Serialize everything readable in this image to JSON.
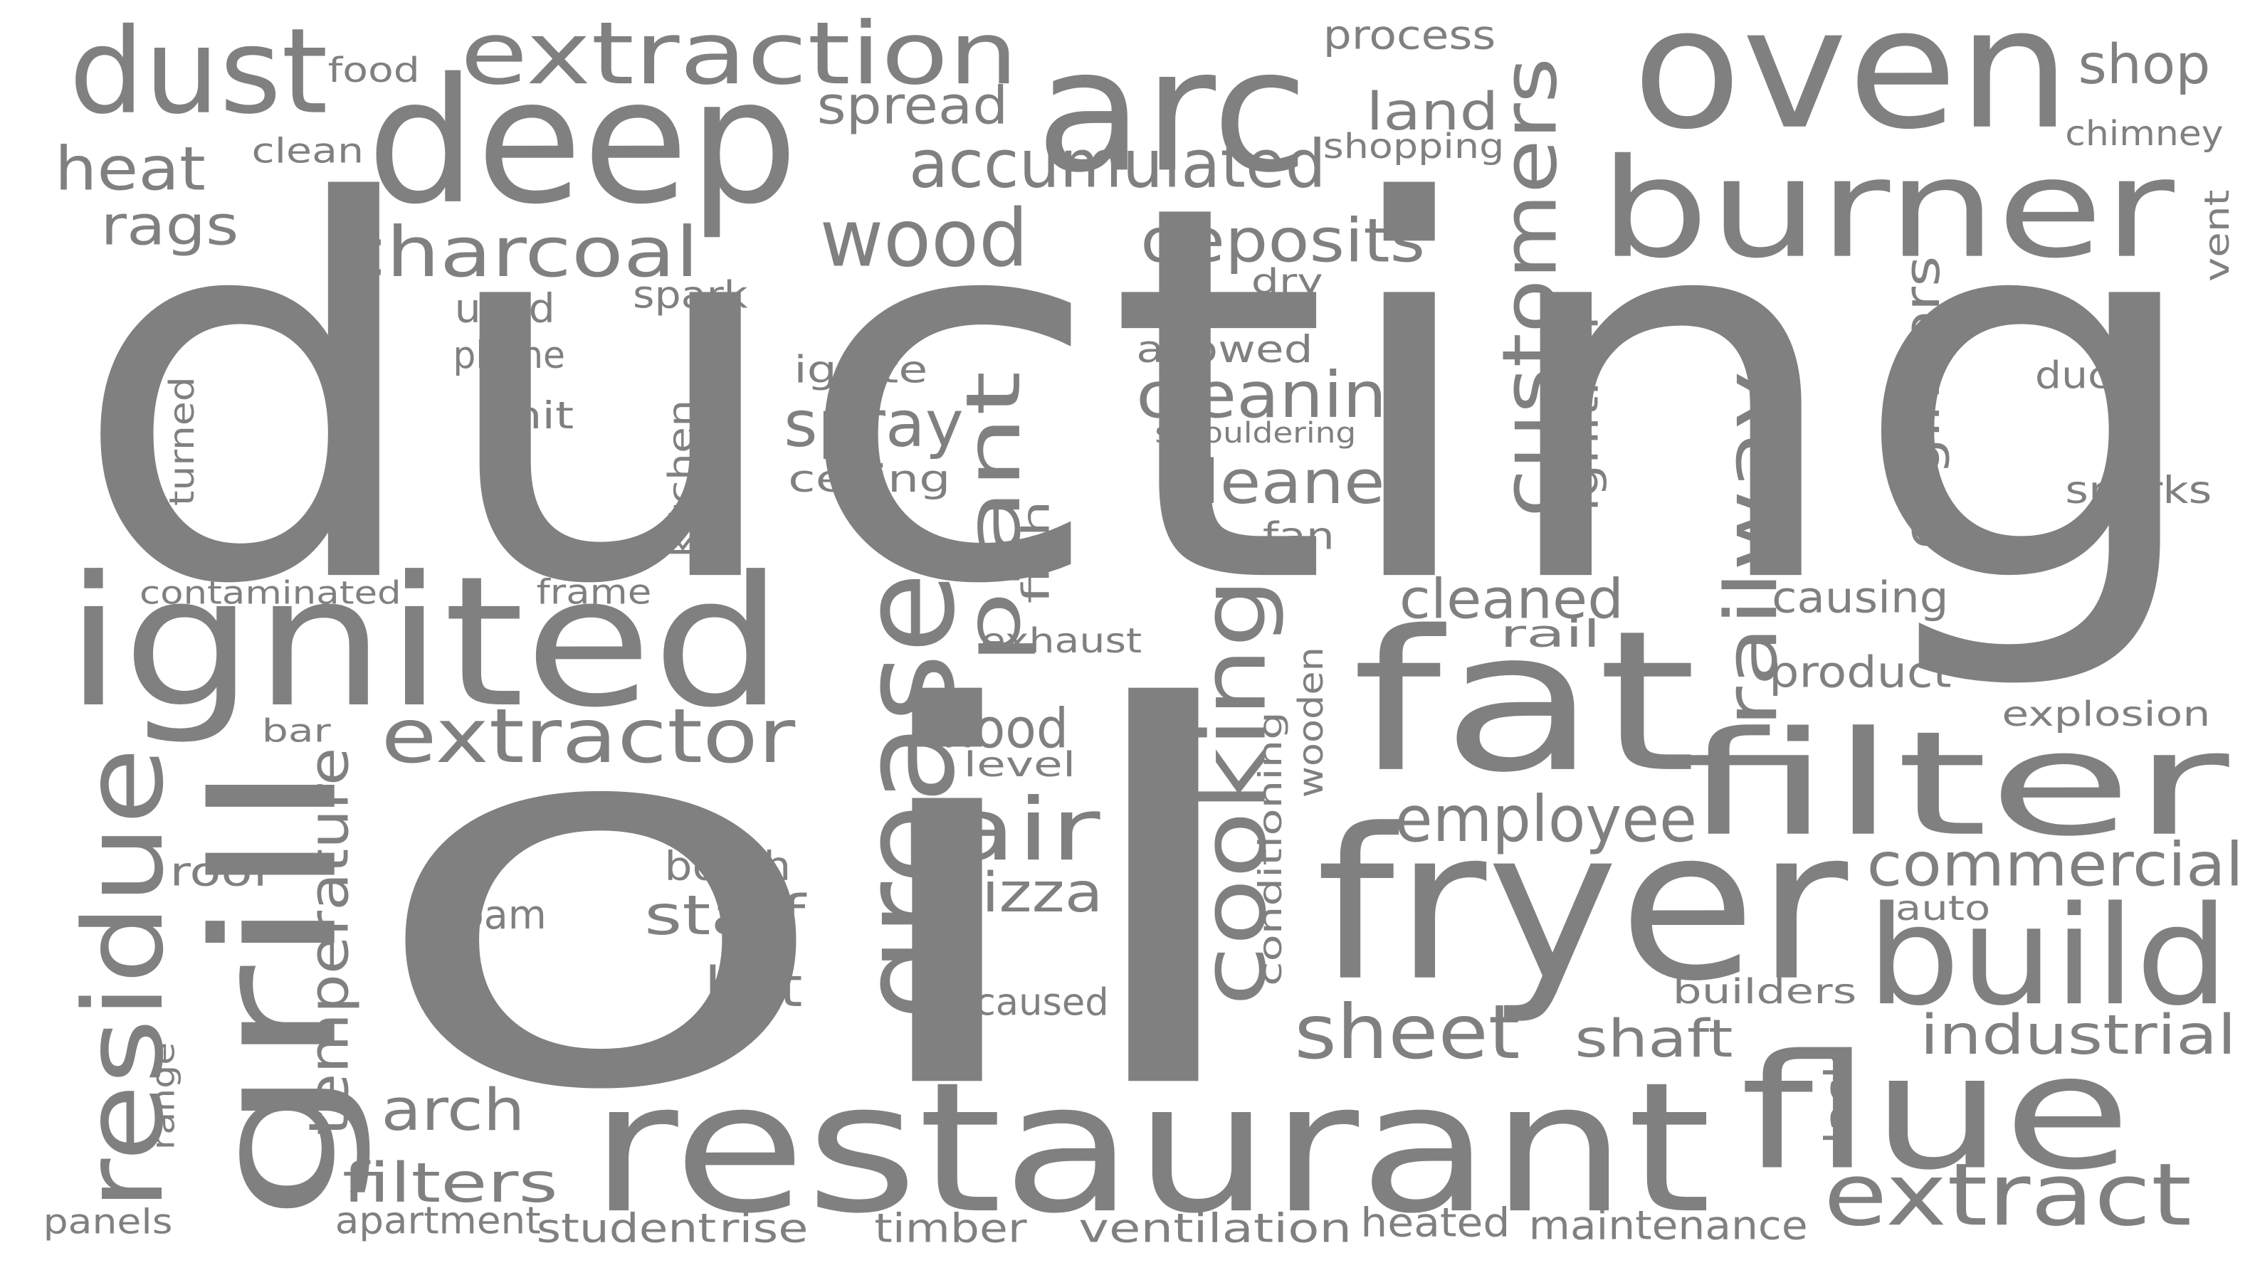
{
  "word_color": "#808080",
  "background": "#ffffff",
  "words": [
    {
      "text": "ducting",
      "orientation": "horizontal"
    },
    {
      "text": "oil",
      "orientation": "horizontal"
    },
    {
      "text": "restaurant",
      "orientation": "horizontal"
    },
    {
      "text": "oven",
      "orientation": "horizontal"
    },
    {
      "text": "deep",
      "orientation": "horizontal"
    },
    {
      "text": "arc",
      "orientation": "horizontal"
    },
    {
      "text": "fryer",
      "orientation": "horizontal"
    },
    {
      "text": "ignited",
      "orientation": "horizontal"
    },
    {
      "text": "fat",
      "orientation": "horizontal"
    },
    {
      "text": "burner",
      "orientation": "horizontal"
    },
    {
      "text": "filter",
      "orientation": "horizontal"
    },
    {
      "text": "flue",
      "orientation": "horizontal"
    },
    {
      "text": "build",
      "orientation": "horizontal"
    },
    {
      "text": "dust",
      "orientation": "horizontal"
    },
    {
      "text": "grill",
      "orientation": "vertical"
    },
    {
      "text": "grease",
      "orientation": "vertical"
    },
    {
      "text": "residue",
      "orientation": "vertical"
    },
    {
      "text": "extraction",
      "orientation": "horizontal"
    },
    {
      "text": "extract",
      "orientation": "horizontal"
    },
    {
      "text": "cooking",
      "orientation": "vertical"
    },
    {
      "text": "customers",
      "orientation": "vertical"
    },
    {
      "text": "plant",
      "orientation": "vertical"
    },
    {
      "text": "extractor",
      "orientation": "horizontal"
    },
    {
      "text": "air",
      "orientation": "horizontal"
    },
    {
      "text": "wood",
      "orientation": "horizontal"
    },
    {
      "text": "charcoal",
      "orientation": "horizontal"
    },
    {
      "text": "accumulated",
      "orientation": "horizontal"
    },
    {
      "text": "sheet",
      "orientation": "horizontal"
    },
    {
      "text": "railway",
      "orientation": "vertical"
    },
    {
      "text": "commercial",
      "orientation": "horizontal"
    },
    {
      "text": "deposits",
      "orientation": "horizontal"
    },
    {
      "text": "employee",
      "orientation": "horizontal"
    },
    {
      "text": "arch",
      "orientation": "horizontal"
    },
    {
      "text": "cleaning",
      "orientation": "horizontal"
    },
    {
      "text": "cleaner",
      "orientation": "horizontal"
    },
    {
      "text": "heat",
      "orientation": "horizontal"
    },
    {
      "text": "temperature",
      "orientation": "vertical"
    },
    {
      "text": "industrial",
      "orientation": "horizontal"
    },
    {
      "text": "spray",
      "orientation": "horizontal"
    },
    {
      "text": "filters",
      "orientation": "horizontal"
    },
    {
      "text": "shop",
      "orientation": "horizontal"
    },
    {
      "text": "cleaned",
      "orientation": "horizontal"
    },
    {
      "text": "pizza",
      "orientation": "horizontal"
    },
    {
      "text": "staff",
      "orientation": "horizontal"
    },
    {
      "text": "hot",
      "orientation": "horizontal"
    },
    {
      "text": "hood",
      "orientation": "horizontal"
    },
    {
      "text": "shaft",
      "orientation": "horizontal"
    },
    {
      "text": "rags",
      "orientation": "horizontal"
    },
    {
      "text": "land",
      "orientation": "horizontal"
    },
    {
      "text": "spread",
      "orientation": "horizontal"
    },
    {
      "text": "engineers",
      "orientation": "vertical"
    },
    {
      "text": "product",
      "orientation": "horizontal"
    },
    {
      "text": "causing",
      "orientation": "horizontal"
    },
    {
      "text": "process",
      "orientation": "horizontal"
    },
    {
      "text": "timber",
      "orientation": "horizontal"
    },
    {
      "text": "ventilation",
      "orientation": "horizontal"
    },
    {
      "text": "heated",
      "orientation": "horizontal"
    },
    {
      "text": "maintenance",
      "orientation": "horizontal"
    },
    {
      "text": "rise",
      "orientation": "horizontal"
    },
    {
      "text": "student",
      "orientation": "horizontal"
    },
    {
      "text": "apartment",
      "orientation": "horizontal"
    },
    {
      "text": "panels",
      "orientation": "horizontal"
    },
    {
      "text": "foam",
      "orientation": "horizontal"
    },
    {
      "text": "booth",
      "orientation": "horizontal"
    },
    {
      "text": "roof",
      "orientation": "horizontal"
    },
    {
      "text": "caused",
      "orientation": "horizontal"
    },
    {
      "text": "ignition",
      "orientation": "vertical"
    },
    {
      "text": "wooden",
      "orientation": "vertical"
    },
    {
      "text": "conditioning",
      "orientation": "vertical"
    },
    {
      "text": "kitchen",
      "orientation": "vertical"
    },
    {
      "text": "fish",
      "orientation": "vertical"
    },
    {
      "text": "turned",
      "orientation": "vertical"
    },
    {
      "text": "range",
      "orientation": "vertical"
    },
    {
      "text": "lack",
      "orientation": "vertical"
    },
    {
      "text": "vent",
      "orientation": "vertical"
    },
    {
      "text": "used",
      "orientation": "horizontal"
    },
    {
      "text": "phone",
      "orientation": "horizontal"
    },
    {
      "text": "unit",
      "orientation": "horizontal"
    },
    {
      "text": "spark",
      "orientation": "horizontal"
    },
    {
      "text": "ignite",
      "orientation": "horizontal"
    },
    {
      "text": "ceiling",
      "orientation": "horizontal"
    },
    {
      "text": "allowed",
      "orientation": "horizontal"
    },
    {
      "text": "smouldering",
      "orientation": "horizontal"
    },
    {
      "text": "dry",
      "orientation": "horizontal"
    },
    {
      "text": "fan",
      "orientation": "horizontal"
    },
    {
      "text": "exhaust",
      "orientation": "horizontal"
    },
    {
      "text": "level",
      "orientation": "horizontal"
    },
    {
      "text": "rail",
      "orientation": "horizontal"
    },
    {
      "text": "frame",
      "orientation": "horizontal"
    },
    {
      "text": "contaminated",
      "orientation": "horizontal"
    },
    {
      "text": "bar",
      "orientation": "horizontal"
    },
    {
      "text": "food",
      "orientation": "horizontal"
    },
    {
      "text": "clean",
      "orientation": "horizontal"
    },
    {
      "text": "shopping",
      "orientation": "horizontal"
    },
    {
      "text": "chimney",
      "orientation": "horizontal"
    },
    {
      "text": "duct",
      "orientation": "horizontal"
    },
    {
      "text": "sparks",
      "orientation": "horizontal"
    },
    {
      "text": "explosion",
      "orientation": "horizontal"
    },
    {
      "text": "auto",
      "orientation": "horizontal"
    },
    {
      "text": "builders",
      "orientation": "horizontal"
    }
  ]
}
